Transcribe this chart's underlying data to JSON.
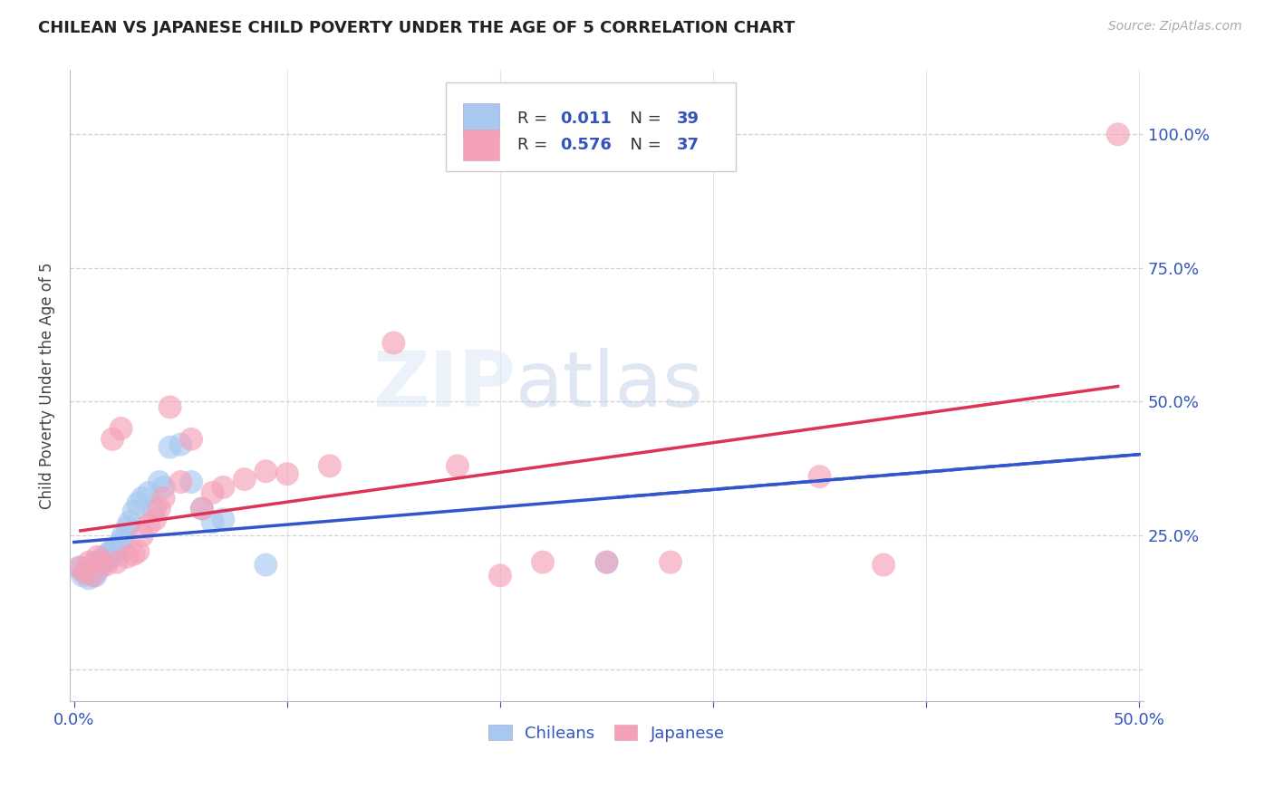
{
  "title": "CHILEAN VS JAPANESE CHILD POVERTY UNDER THE AGE OF 5 CORRELATION CHART",
  "source": "Source: ZipAtlas.com",
  "ylabel": "Child Poverty Under the Age of 5",
  "watermark_zip": "ZIP",
  "watermark_atlas": "atlas",
  "xlim": [
    -0.002,
    0.502
  ],
  "ylim": [
    -0.06,
    1.12
  ],
  "yticks": [
    0.0,
    0.25,
    0.5,
    0.75,
    1.0
  ],
  "ytick_labels": [
    "",
    "25.0%",
    "50.0%",
    "75.0%",
    "100.0%"
  ],
  "xticks": [
    0.0,
    0.1,
    0.2,
    0.3,
    0.4,
    0.5
  ],
  "xtick_labels": [
    "0.0%",
    "",
    "",
    "",
    "",
    "50.0%"
  ],
  "blue_scatter_color": "#a8c8f0",
  "pink_scatter_color": "#f4a0b8",
  "blue_line_color": "#3355cc",
  "pink_line_color": "#dd3355",
  "tick_color": "#3355bb",
  "grid_color": "#cccccc",
  "legend_text_color": "#333333",
  "legend_value_color": "#3355bb",
  "chileans_x": [
    0.002,
    0.004,
    0.005,
    0.006,
    0.007,
    0.008,
    0.009,
    0.01,
    0.01,
    0.011,
    0.012,
    0.013,
    0.014,
    0.015,
    0.016,
    0.017,
    0.018,
    0.019,
    0.02,
    0.021,
    0.022,
    0.023,
    0.025,
    0.026,
    0.028,
    0.03,
    0.032,
    0.035,
    0.038,
    0.04,
    0.042,
    0.045,
    0.05,
    0.055,
    0.06,
    0.065,
    0.07,
    0.09,
    0.25
  ],
  "chileans_y": [
    0.19,
    0.175,
    0.18,
    0.185,
    0.17,
    0.18,
    0.195,
    0.2,
    0.175,
    0.185,
    0.2,
    0.195,
    0.21,
    0.205,
    0.215,
    0.22,
    0.21,
    0.225,
    0.22,
    0.23,
    0.24,
    0.25,
    0.265,
    0.275,
    0.295,
    0.31,
    0.32,
    0.33,
    0.3,
    0.35,
    0.34,
    0.415,
    0.42,
    0.35,
    0.3,
    0.275,
    0.28,
    0.195,
    0.2
  ],
  "japanese_x": [
    0.003,
    0.005,
    0.007,
    0.009,
    0.011,
    0.013,
    0.015,
    0.018,
    0.02,
    0.022,
    0.025,
    0.028,
    0.03,
    0.032,
    0.035,
    0.038,
    0.04,
    0.042,
    0.045,
    0.05,
    0.055,
    0.06,
    0.065,
    0.07,
    0.08,
    0.09,
    0.1,
    0.12,
    0.15,
    0.18,
    0.2,
    0.22,
    0.25,
    0.28,
    0.35,
    0.38,
    0.49
  ],
  "japanese_y": [
    0.19,
    0.18,
    0.2,
    0.175,
    0.21,
    0.2,
    0.195,
    0.43,
    0.2,
    0.45,
    0.21,
    0.215,
    0.22,
    0.25,
    0.27,
    0.28,
    0.3,
    0.32,
    0.49,
    0.35,
    0.43,
    0.3,
    0.33,
    0.34,
    0.355,
    0.37,
    0.365,
    0.38,
    0.61,
    0.38,
    0.175,
    0.2,
    0.2,
    0.2,
    0.36,
    0.195,
    1.0
  ]
}
